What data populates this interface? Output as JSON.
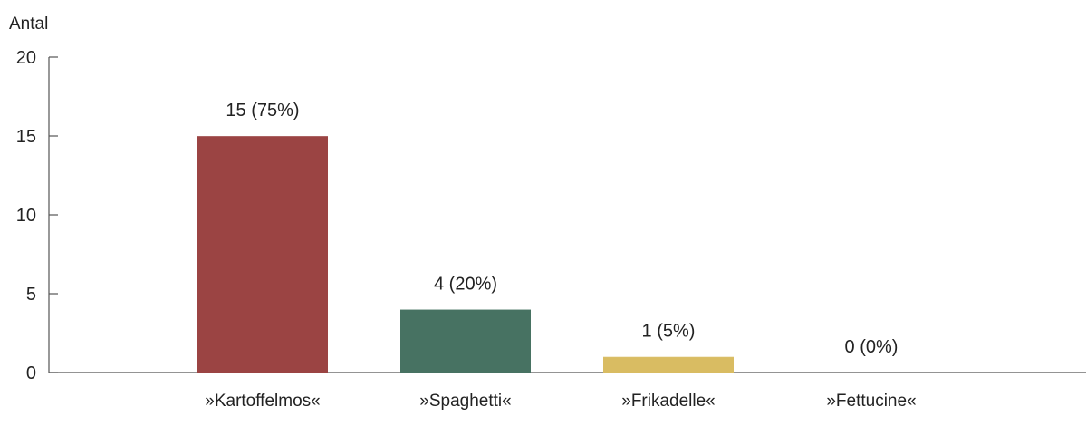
{
  "chart_data": {
    "type": "bar",
    "ylabel": "Antal",
    "ylim": [
      0,
      20
    ],
    "yticks": [
      0,
      5,
      10,
      15,
      20
    ],
    "categories": [
      "»Kartoffelmos«",
      "»Spaghetti«",
      "»Frikadelle«",
      "»Fettucine«"
    ],
    "values": [
      15,
      4,
      1,
      0
    ],
    "value_labels": [
      "15 (75%)",
      "4 (20%)",
      "1 (5%)",
      "0 (0%)"
    ],
    "colors": [
      "#9b4443",
      "#477262",
      "#d9bc62",
      "#cccccc"
    ],
    "axis_color": "#555555",
    "grid": false
  }
}
